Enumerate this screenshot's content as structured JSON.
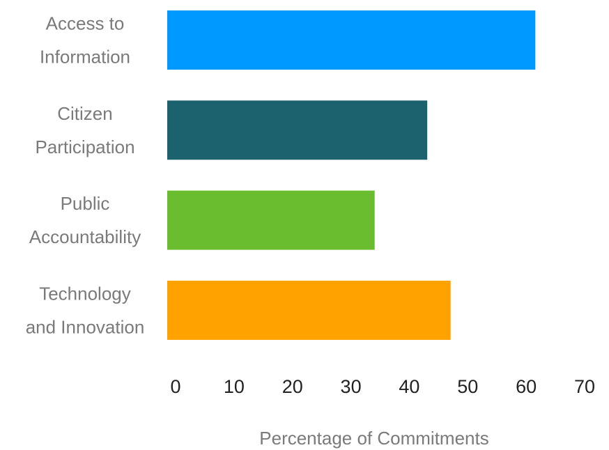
{
  "chart_data": {
    "type": "bar",
    "orientation": "horizontal",
    "title": "",
    "xlabel": "Percentage of Commitments",
    "ylabel": "",
    "categories": [
      [
        "Access to",
        "Information"
      ],
      [
        "Citizen",
        "Participation"
      ],
      [
        "Public",
        "Accountability"
      ],
      [
        "Technology",
        "and Innovation"
      ]
    ],
    "values": [
      63,
      44.5,
      35.5,
      48.5
    ],
    "colors": [
      "#0099ff",
      "#1b616e",
      "#6abd2e",
      "#ffa200"
    ],
    "xlim": [
      0,
      70
    ],
    "ticks": [
      0,
      10,
      20,
      30,
      40,
      50,
      60,
      70
    ],
    "grid": false,
    "legend": "none"
  }
}
